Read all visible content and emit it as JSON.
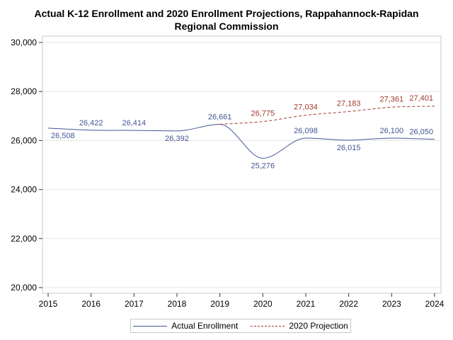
{
  "chart_data": {
    "type": "line",
    "title_lines": [
      "Actual K-12 Enrollment and 2020 Enrollment Projections, Rappahannock-Rapidan",
      "Regional Commission"
    ],
    "xlabel": "",
    "ylabel": "",
    "x": [
      2015,
      2016,
      2017,
      2018,
      2019,
      2020,
      2021,
      2022,
      2023,
      2024
    ],
    "xlim": [
      2015,
      2024
    ],
    "ylim": [
      20000,
      30000
    ],
    "yticks": [
      20000,
      22000,
      24000,
      26000,
      28000,
      30000
    ],
    "ytick_labels": [
      "20,000",
      "22,000",
      "24,000",
      "26,000",
      "28,000",
      "30,000"
    ],
    "grid": true,
    "legend_position": "bottom",
    "series": [
      {
        "name": "Actual Enrollment",
        "color": "#445694",
        "style": "solid",
        "points": [
          {
            "x": 2015,
            "y": 26508,
            "label": "26,508"
          },
          {
            "x": 2016,
            "y": 26422,
            "label": "26,422"
          },
          {
            "x": 2017,
            "y": 26414,
            "label": "26,414"
          },
          {
            "x": 2018,
            "y": 26392,
            "label": "26,392"
          },
          {
            "x": 2019,
            "y": 26661,
            "label": "26,661"
          },
          {
            "x": 2020,
            "y": 25276,
            "label": "25,276"
          },
          {
            "x": 2021,
            "y": 26098,
            "label": "26,098"
          },
          {
            "x": 2022,
            "y": 26015,
            "label": "26,015"
          },
          {
            "x": 2023,
            "y": 26100,
            "label": "26,100"
          },
          {
            "x": 2024,
            "y": 26050,
            "label": "26,050"
          }
        ]
      },
      {
        "name": "2020 Projection",
        "color": "#a23a2e",
        "style": "dashed",
        "points": [
          {
            "x": 2019,
            "y": 26661,
            "label": ""
          },
          {
            "x": 2020,
            "y": 26775,
            "label": "26,775"
          },
          {
            "x": 2021,
            "y": 27034,
            "label": "27,034"
          },
          {
            "x": 2022,
            "y": 27183,
            "label": "27,183"
          },
          {
            "x": 2023,
            "y": 27361,
            "label": "27,361"
          },
          {
            "x": 2024,
            "y": 27401,
            "label": "27,401"
          }
        ]
      }
    ]
  }
}
